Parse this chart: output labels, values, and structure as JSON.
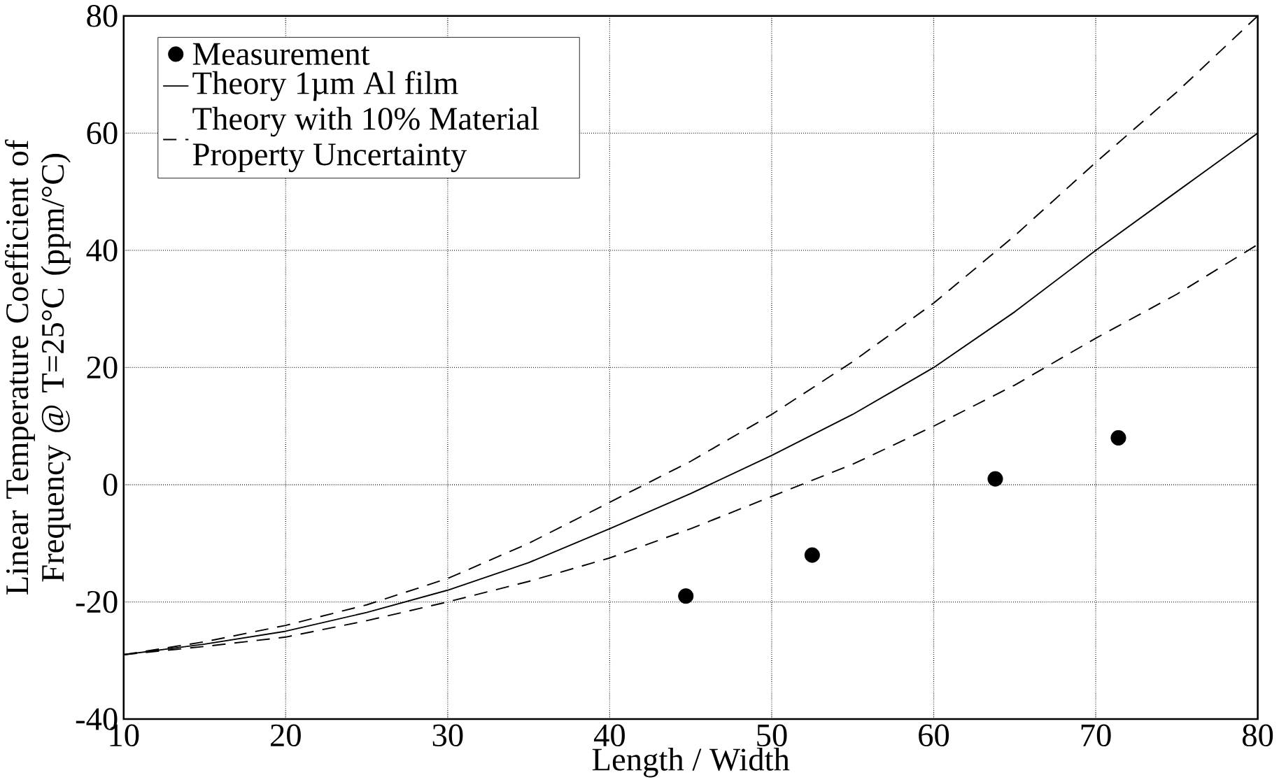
{
  "chart_data": {
    "type": "line",
    "xlabel": "Length / Width",
    "ylabel": "Linear Temperature Coefficient of Frequency @ T=25°C (ppm/°C)",
    "xlim": [
      10,
      80
    ],
    "ylim": [
      -40,
      80
    ],
    "xticks": [
      10,
      20,
      30,
      40,
      50,
      60,
      70,
      80
    ],
    "yticks": [
      -40,
      -20,
      0,
      20,
      40,
      60,
      80
    ],
    "grid": true,
    "legend": "top left",
    "series": [
      {
        "name": "Measurement",
        "type": "scatter",
        "marker": "circle",
        "color": "#000000",
        "x": [
          44.7,
          52.5,
          63.8,
          71.4
        ],
        "values": [
          -19,
          -12,
          1,
          8
        ]
      },
      {
        "name": "Theory 1µm Al film",
        "type": "line",
        "line_style": "solid",
        "color": "#000000",
        "x": [
          10,
          15,
          20,
          25,
          30,
          35,
          40,
          45,
          50,
          55,
          60,
          65,
          70,
          75,
          80
        ],
        "values": [
          -29,
          -27.2,
          -25,
          -21.8,
          -18,
          -13.3,
          -7.5,
          -1.5,
          5,
          12,
          20,
          29.5,
          40,
          50,
          60
        ]
      },
      {
        "name": "Theory with 10% Material Property Uncertainty",
        "type": "line",
        "line_style": "dashed",
        "color": "#000000",
        "x": [
          10,
          15,
          20,
          25,
          30,
          35,
          40,
          45,
          50,
          55,
          60,
          65,
          70,
          75,
          80
        ],
        "values": [
          -29,
          -26.8,
          -24,
          -20.5,
          -16,
          -10,
          -3,
          4,
          12,
          21,
          31,
          42.5,
          55,
          67,
          80
        ]
      },
      {
        "type": "line",
        "line_style": "dashed",
        "color": "#000000",
        "x": [
          10,
          15,
          20,
          25,
          30,
          35,
          40,
          45,
          50,
          55,
          60,
          65,
          70,
          75,
          80
        ],
        "values": [
          -29,
          -27.6,
          -26,
          -23.2,
          -20,
          -16.5,
          -12.5,
          -7.5,
          -2,
          3.5,
          10,
          17,
          25,
          32.5,
          41
        ]
      }
    ]
  }
}
